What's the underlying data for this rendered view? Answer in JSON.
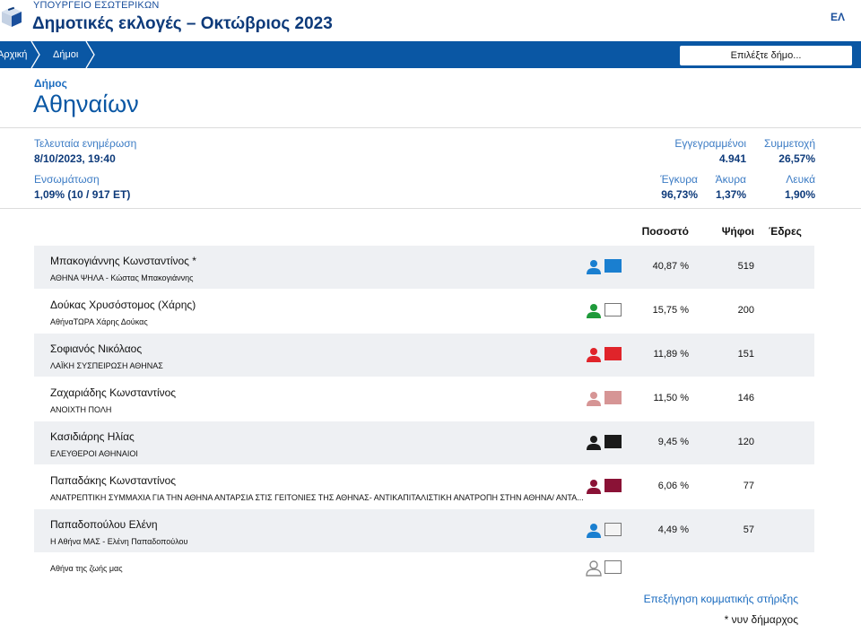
{
  "header": {
    "ministry": "ΥΠΟΥΡΓΕΙΟ ΕΣΩΤΕΡΙΚΩΝ",
    "title": "Δημοτικές εκλογές – Οκτώβριος 2023",
    "lang": "ΕΛ"
  },
  "nav": {
    "crumbs": [
      "Αρχική",
      "Δήμοι"
    ],
    "select_placeholder": "Επιλέξτε δήμο..."
  },
  "municipality": {
    "label": "Δήμος",
    "name": "Αθηναίων"
  },
  "stats": {
    "last_update_label": "Τελευταία ενημέρωση",
    "last_update_value": "8/10/2023, 19:40",
    "integration_label": "Ενσωμάτωση",
    "integration_value": "1,09% (10 / 917 ΕΤ)",
    "registered_label": "Εγγεγραμμένοι",
    "registered_value": "4.941",
    "turnout_label": "Συμμετοχή",
    "turnout_value": "26,57%",
    "valid_label": "Έγκυρα",
    "valid_value": "96,73%",
    "invalid_label": "Άκυρα",
    "invalid_value": "1,37%",
    "blank_label": "Λευκά",
    "blank_value": "1,90%"
  },
  "table": {
    "headers": {
      "percent": "Ποσοστό",
      "votes": "Ψήφοι",
      "seats": "Έδρες"
    },
    "rows": [
      {
        "candidate": "Μπακογιάννης Κωνσταντίνος *",
        "party": "ΑΘΗΝΑ ΨΗΛΑ - Κώστας Μπακογιάννης",
        "percent": "40,87 %",
        "votes": "519",
        "icon_color": "#1a7fd0",
        "swatch_color": "#1a7fd0"
      },
      {
        "candidate": "Δούκας Χρυσόστομος (Χάρης)",
        "party": "ΑθήναΤΩΡΑ Χάρης Δούκας",
        "percent": "15,75 %",
        "votes": "200",
        "icon_color": "#1e9a3a",
        "swatch_color": "#ffffff"
      },
      {
        "candidate": "Σοφιανός Νικόλαος",
        "party": "ΛΑΪΚΗ ΣΥΣΠΕΙΡΩΣΗ ΑΘΗΝΑΣ",
        "percent": "11,89 %",
        "votes": "151",
        "icon_color": "#e0242a",
        "swatch_color": "#e0242a"
      },
      {
        "candidate": "Ζαχαριάδης Κωνσταντίνος",
        "party": "ΑΝΟΙΧΤΗ ΠΟΛΗ",
        "percent": "11,50 %",
        "votes": "146",
        "icon_color": "#d69595",
        "swatch_color": "#d69595"
      },
      {
        "candidate": "Κασιδιάρης Ηλίας",
        "party": "ΕΛΕΥΘΕΡΟΙ ΑΘΗΝΑΙΟΙ",
        "percent": "9,45 %",
        "votes": "120",
        "icon_color": "#1a1a1a",
        "swatch_color": "#1a1a1a"
      },
      {
        "candidate": "Παπαδάκης Κωνσταντίνος",
        "party": "ΑΝΑΤΡΕΠΤΙΚΗ ΣΥΜΜΑΧΙΑ ΓΙΑ ΤΗΝ ΑΘΗΝΑ ΑΝΤΑΡΣΙΑ ΣΤΙΣ ΓΕΙΤΟΝΙΕΣ ΤΗΣ ΑΘΗΝΑΣ- ΑΝΤΙΚΑΠΙΤΑΛΙΣΤΙΚΗ ΑΝΑΤΡΟΠΗ ΣΤΗΝ ΑΘΗΝΑ/ ΑΝΤΑ...",
        "percent": "6,06 %",
        "votes": "77",
        "icon_color": "#8a1236",
        "swatch_color": "#8a1236"
      },
      {
        "candidate": "Παπαδοπούλου Ελένη",
        "party": "Η Αθήνα ΜΑΣ - Ελένη Παπαδοπούλου",
        "percent": "4,49 %",
        "votes": "57",
        "icon_color": "#1a7fd0",
        "swatch_color": "#f4f4f4"
      },
      {
        "candidate": "",
        "party": "Αθήνα της ζωής μας",
        "percent": "",
        "votes": "",
        "icon_color": "#8a8a8a",
        "icon_outline": true,
        "swatch_color": "#ffffff"
      }
    ]
  },
  "footer": {
    "link": "Επεξήγηση κομματικής στήριξης",
    "note": "* νυν δήμαρχος"
  }
}
